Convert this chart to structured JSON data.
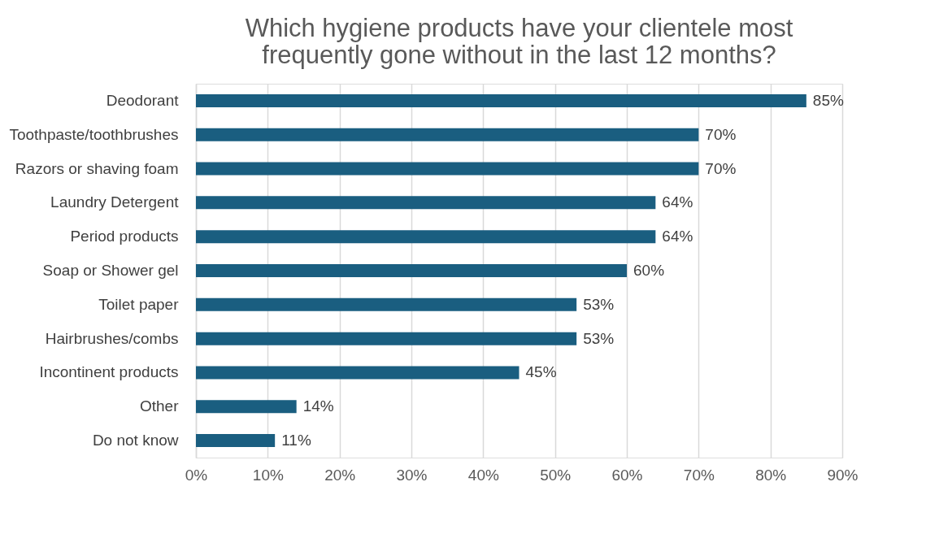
{
  "chart_data": {
    "type": "bar",
    "orientation": "horizontal",
    "title": [
      "Which hygiene products have your clientele most",
      "frequently gone without in the last 12 months?"
    ],
    "categories": [
      "Deodorant",
      "Toothpaste/toothbrushes",
      "Razors or shaving foam",
      "Laundry Detergent",
      "Period products",
      "Soap or Shower gel",
      "Toilet paper",
      "Hairbrushes/combs",
      "Incontinent products",
      "Other",
      "Do not know"
    ],
    "values": [
      85,
      70,
      70,
      64,
      64,
      60,
      53,
      53,
      45,
      14,
      11
    ],
    "value_labels": [
      "85%",
      "70%",
      "70%",
      "64%",
      "64%",
      "60%",
      "53%",
      "53%",
      "45%",
      "14%",
      "11%"
    ],
    "color": "#1a5e80",
    "xlim": [
      0,
      90
    ],
    "xticks": [
      {
        "value": 0,
        "label": "0%"
      },
      {
        "value": 10,
        "label": "10%"
      },
      {
        "value": 20,
        "label": "20%"
      },
      {
        "value": 30,
        "label": "30%"
      },
      {
        "value": 40,
        "label": "40%"
      },
      {
        "value": 50,
        "label": "50%"
      },
      {
        "value": 60,
        "label": "60%"
      },
      {
        "value": 70,
        "label": "70%"
      },
      {
        "value": 80,
        "label": "80%"
      },
      {
        "value": 90,
        "label": "90%"
      }
    ],
    "grid": "x"
  }
}
